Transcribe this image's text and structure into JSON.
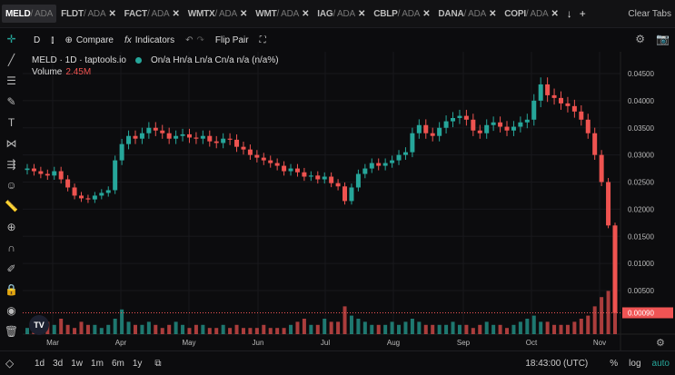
{
  "tabs": [
    {
      "sym": "MELD",
      "quote": "/ ADA",
      "active": true
    },
    {
      "sym": "FLDT",
      "quote": "/ ADA"
    },
    {
      "sym": "FACT",
      "quote": "/ ADA"
    },
    {
      "sym": "WMTX",
      "quote": "/ ADA"
    },
    {
      "sym": "WMT",
      "quote": "/ ADA"
    },
    {
      "sym": "IAG",
      "quote": "/ ADA"
    },
    {
      "sym": "CBLP",
      "quote": "/ ADA"
    },
    {
      "sym": "DANA",
      "quote": "/ ADA"
    },
    {
      "sym": "COPI",
      "quote": "/ ADA"
    }
  ],
  "tab_close": "✕",
  "tab_down": "↓",
  "tab_add": "+",
  "clear_tabs": "Clear Tabs",
  "toolbar": {
    "interval": "D",
    "compare": "Compare",
    "indicators": "Indicators",
    "flip": "Flip Pair"
  },
  "legend": {
    "title": "MELD · 1D · taptools.io",
    "ohlc": "On/a Hn/a Ln/a Cn/a n/a (n/a%)",
    "volume_label": "Volume",
    "volume_value": "2.45M"
  },
  "colors": {
    "up": "#26a69a",
    "down": "#ef5350",
    "last_price": "#f05454"
  },
  "chart_data": {
    "type": "candlestick",
    "y_ticks": [
      "0.04500",
      "0.04000",
      "0.03500",
      "0.03000",
      "0.02500",
      "0.02000",
      "0.01500",
      "0.01000",
      "0.00500"
    ],
    "ylim": [
      0,
      0.046
    ],
    "x_ticks": [
      "Mar",
      "Apr",
      "May",
      "Jun",
      "Jul",
      "Aug",
      "Sep",
      "Oct",
      "Nov"
    ],
    "last_price": "0.00090",
    "close": [
      0.0275,
      0.027,
      0.0265,
      0.0262,
      0.027,
      0.0255,
      0.024,
      0.0225,
      0.022,
      0.0218,
      0.0225,
      0.023,
      0.0235,
      0.029,
      0.032,
      0.0335,
      0.033,
      0.034,
      0.035,
      0.0345,
      0.034,
      0.033,
      0.0335,
      0.0338,
      0.0332,
      0.033,
      0.0335,
      0.0325,
      0.0322,
      0.033,
      0.0328,
      0.0315,
      0.031,
      0.03,
      0.0295,
      0.029,
      0.0285,
      0.028,
      0.027,
      0.0275,
      0.0268,
      0.026,
      0.0262,
      0.0255,
      0.026,
      0.0248,
      0.0242,
      0.0215,
      0.024,
      0.0265,
      0.0275,
      0.0285,
      0.028,
      0.0285,
      0.029,
      0.03,
      0.0305,
      0.034,
      0.0355,
      0.034,
      0.0335,
      0.035,
      0.0362,
      0.0368,
      0.0372,
      0.0365,
      0.0345,
      0.034,
      0.0355,
      0.036,
      0.0352,
      0.0345,
      0.0352,
      0.036,
      0.0365,
      0.04,
      0.043,
      0.041,
      0.0405,
      0.0395,
      0.039,
      0.038,
      0.0365,
      0.034,
      0.03,
      0.025,
      0.017,
      0.0009
    ],
    "volume": [
      2,
      3,
      2,
      4,
      3,
      5,
      3,
      2,
      4,
      3,
      3,
      2,
      3,
      5,
      8,
      4,
      3,
      3,
      4,
      3,
      2,
      3,
      4,
      3,
      2,
      3,
      3,
      2,
      2,
      3,
      2,
      3,
      2,
      2,
      2,
      3,
      2,
      2,
      2,
      3,
      4,
      5,
      3,
      3,
      5,
      4,
      4,
      9,
      6,
      5,
      4,
      3,
      3,
      3,
      4,
      3,
      4,
      5,
      4,
      3,
      3,
      3,
      3,
      4,
      3,
      3,
      2,
      3,
      4,
      3,
      3,
      2,
      3,
      4,
      5,
      6,
      4,
      4,
      3,
      3,
      3,
      4,
      5,
      6,
      9,
      12,
      14,
      16
    ]
  },
  "time_readout": "18:43:00 (UTC)",
  "ranges": [
    "1d",
    "3d",
    "1w",
    "1m",
    "6m",
    "1y"
  ],
  "scale": {
    "percent": "%",
    "log": "log",
    "auto": "auto"
  },
  "logo": "TV"
}
